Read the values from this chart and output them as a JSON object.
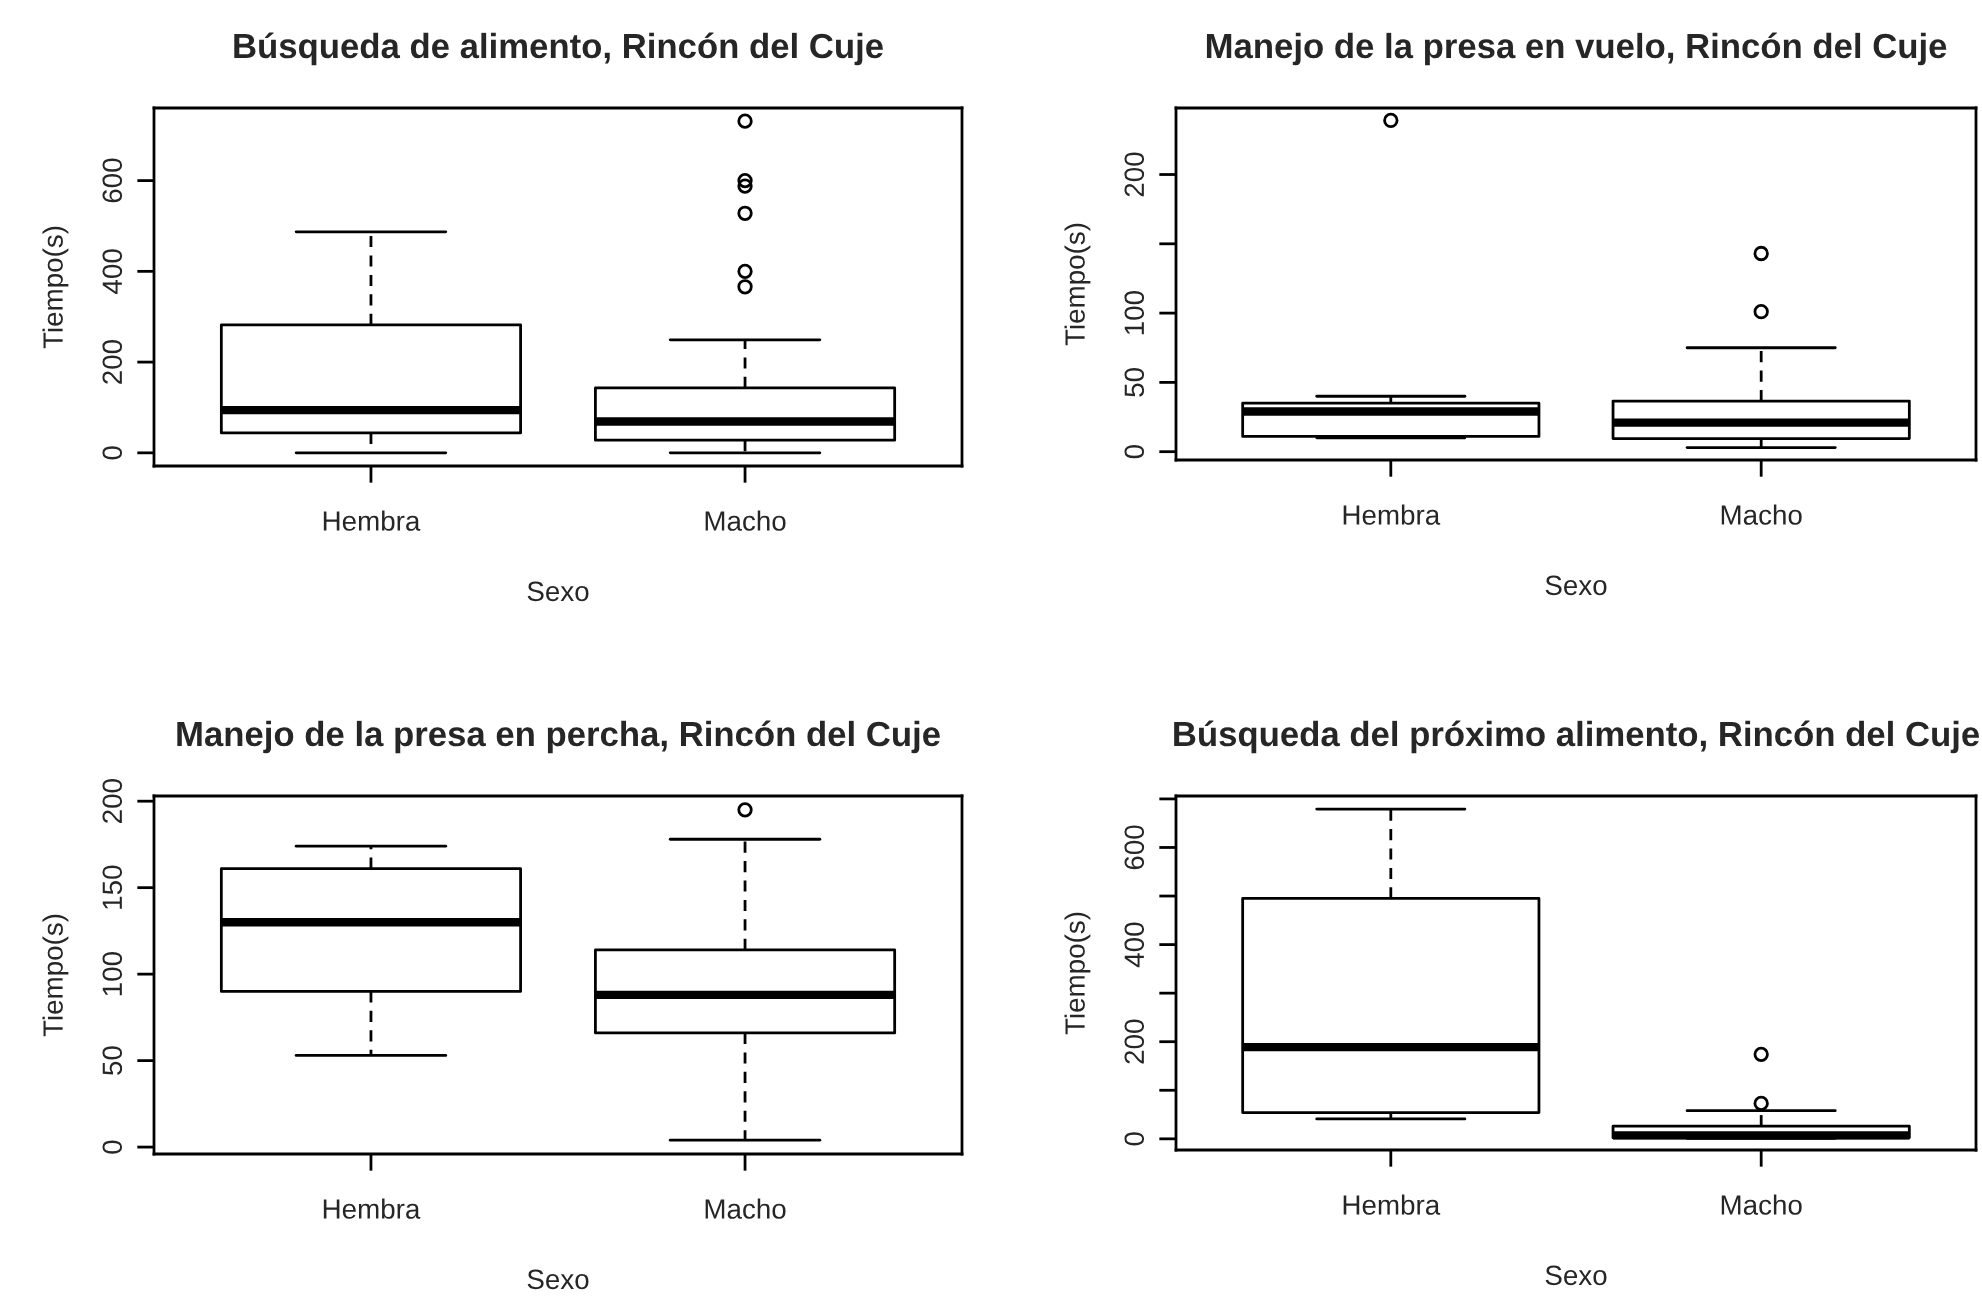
{
  "chart_data": [
    {
      "type": "box",
      "title": "Búsqueda de alimento, Rincón del Cuje",
      "xlabel": "Sexo",
      "ylabel": "Tiempo(s)",
      "categories": [
        "Hembra",
        "Macho"
      ],
      "boxes": [
        {
          "low": 0,
          "q1": 44,
          "median": 94,
          "q3": 282,
          "high": 487
        },
        {
          "low": 0,
          "q1": 28,
          "median": 69,
          "q3": 143,
          "high": 249,
          "outliers": [
            731,
            600,
            588,
            528,
            400,
            366
          ]
        }
      ],
      "ylim": [
        -29,
        760
      ],
      "yticks": [
        0,
        200,
        400,
        600
      ]
    },
    {
      "type": "box",
      "title": "Manejo de la presa en vuelo, Rincón del Cuje",
      "xlabel": "Sexo",
      "ylabel": "Tiempo(s)",
      "categories": [
        "Hembra",
        "Macho"
      ],
      "boxes": [
        {
          "low": 10,
          "q1": 11,
          "median": 29,
          "q3": 35,
          "high": 40,
          "outliers": [
            239
          ]
        },
        {
          "low": 3,
          "q1": 9.5,
          "median": 21,
          "q3": 36.5,
          "high": 75,
          "outliers": [
            101,
            143
          ]
        }
      ],
      "ylim": [
        -6,
        248
      ],
      "yticks": [
        0,
        50,
        100,
        {
          "value": 150,
          "label": null
        },
        200
      ]
    },
    {
      "type": "box",
      "title": "Manejo de la presa en percha, Rincón del Cuje",
      "xlabel": "Sexo",
      "ylabel": "Tiempo(s)",
      "categories": [
        "Hembra",
        "Macho"
      ],
      "boxes": [
        {
          "low": 53,
          "q1": 90,
          "median": 130,
          "q3": 161,
          "high": 174
        },
        {
          "low": 4,
          "q1": 66,
          "median": 88,
          "q3": 114,
          "high": 178,
          "outliers": [
            195
          ]
        }
      ],
      "ylim": [
        -4,
        203
      ],
      "yticks": [
        0,
        50,
        100,
        150,
        200
      ]
    },
    {
      "type": "box",
      "title": "Búsqueda del próximo alimento, Rincón del Cuje",
      "xlabel": "Sexo",
      "ylabel": "Tiempo(s)",
      "categories": [
        "Hembra",
        "Macho"
      ],
      "boxes": [
        {
          "low": 41,
          "q1": 54,
          "median": 189,
          "q3": 495,
          "high": 679
        },
        {
          "low": 1,
          "q1": 2,
          "median": 7,
          "q3": 26,
          "high": 58,
          "outliers": [
            73,
            174
          ]
        }
      ],
      "ylim": [
        -23,
        706
      ],
      "yticks": [
        0,
        {
          "value": 100,
          "label": null
        },
        200,
        {
          "value": 300,
          "label": null
        },
        400,
        {
          "value": 500,
          "label": null
        },
        600,
        {
          "value": 700,
          "label": null
        }
      ]
    }
  ]
}
